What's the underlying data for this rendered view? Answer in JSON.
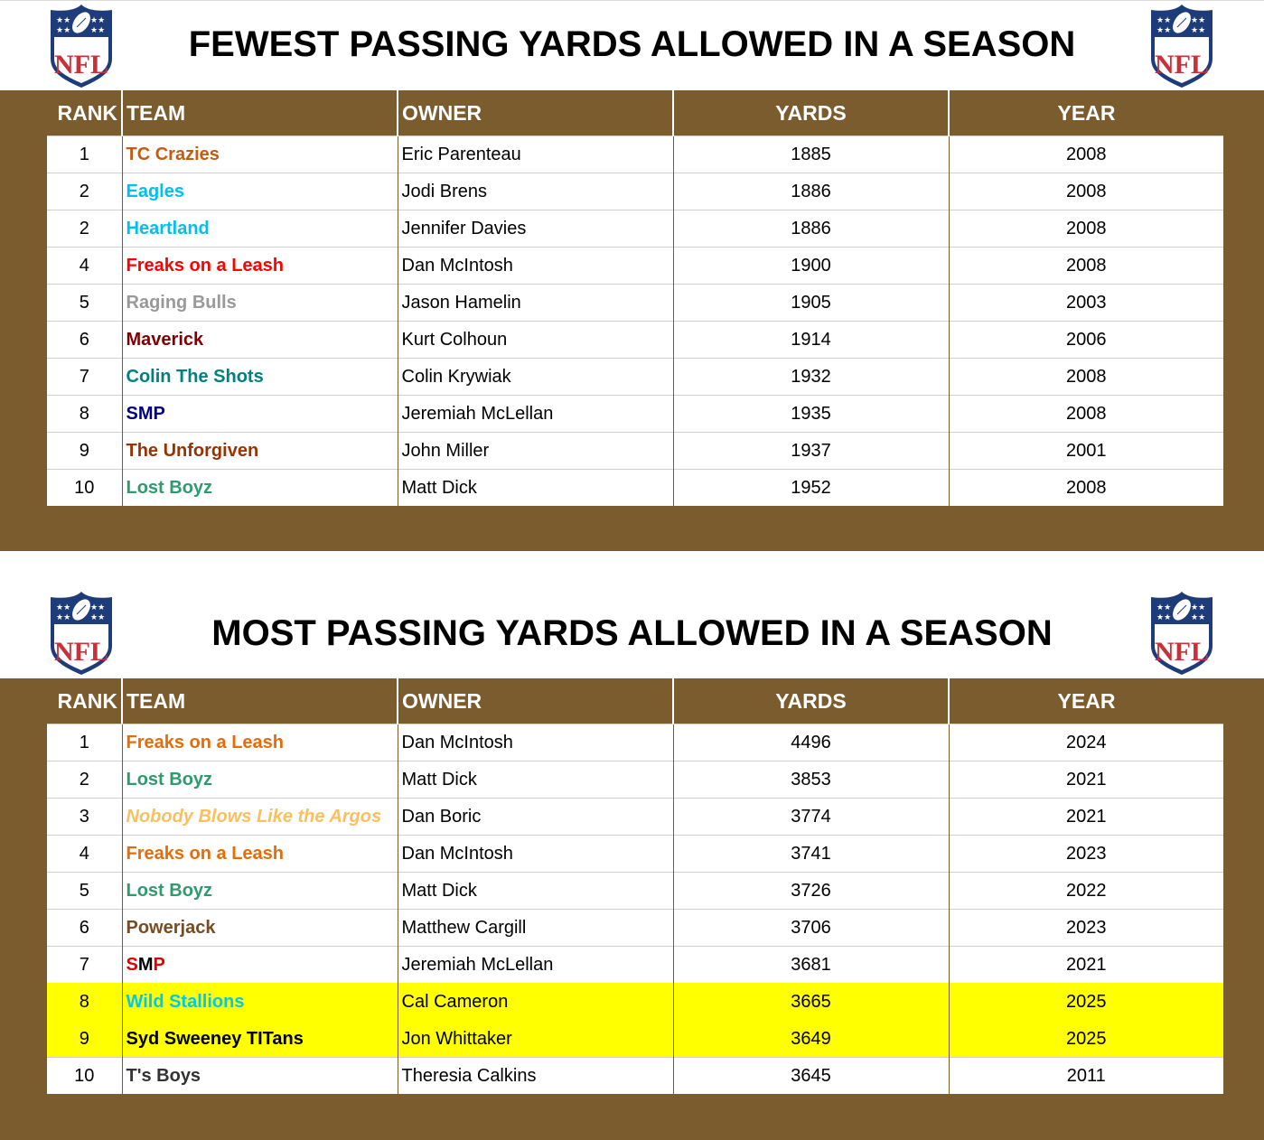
{
  "colors": {
    "band": "#7b5c2e",
    "highlight": "#ffff00"
  },
  "columns": [
    "RANK",
    "TEAM",
    "OWNER",
    "YARDS",
    "YEAR"
  ],
  "fewest": {
    "title": "FEWEST PASSING YARDS ALLOWED IN A SEASON",
    "logo": "nfl-shield-logo",
    "rows": [
      {
        "rank": "1",
        "team": "TC Crazies",
        "team_color": "#c55a11",
        "owner": "Eric Parenteau",
        "yards": "1885",
        "year": "2008"
      },
      {
        "rank": "2",
        "team": "Eagles",
        "team_color": "#00c0f0",
        "owner": "Jodi Brens",
        "yards": "1886",
        "year": "2008"
      },
      {
        "rank": "2",
        "team": "Heartland",
        "team_color": "#00c0f0",
        "owner": "Jennifer Davies",
        "yards": "1886",
        "year": "2008"
      },
      {
        "rank": "4",
        "team": "Freaks on a Leash",
        "team_color": "#ff0000",
        "owner": "Dan McIntosh",
        "yards": "1900",
        "year": "2008"
      },
      {
        "rank": "5",
        "team": "Raging Bulls",
        "team_color": "#999999",
        "owner": "Jason Hamelin",
        "yards": "1905",
        "year": "2003"
      },
      {
        "rank": "6",
        "team": "Maverick",
        "team_color": "#7f0000",
        "owner": "Kurt Colhoun",
        "yards": "1914",
        "year": "2006"
      },
      {
        "rank": "7",
        "team": "Colin The Shots",
        "team_color": "#008080",
        "owner": "Colin Krywiak",
        "yards": "1932",
        "year": "2008"
      },
      {
        "rank": "8",
        "team": "SMP",
        "team_color": "#000080",
        "owner": "Jeremiah McLellan",
        "yards": "1935",
        "year": "2008"
      },
      {
        "rank": "9",
        "team": "The Unforgiven",
        "team_color": "#993300",
        "owner": "John Miller",
        "yards": "1937",
        "year": "2001"
      },
      {
        "rank": "10",
        "team": "Lost Boyz",
        "team_color": "#2e9a6e",
        "owner": "Matt Dick",
        "yards": "1952",
        "year": "2008"
      }
    ]
  },
  "most": {
    "title": "MOST PASSING YARDS ALLOWED IN A SEASON",
    "logo": "nfl-shield-logo",
    "rows": [
      {
        "rank": "1",
        "team": "Freaks on a Leash",
        "team_color": "#e46c0a",
        "owner": "Dan McIntosh",
        "yards": "4496",
        "year": "2024"
      },
      {
        "rank": "2",
        "team": "Lost Boyz",
        "team_color": "#2e9a6e",
        "owner": "Matt Dick",
        "yards": "3853",
        "year": "2021"
      },
      {
        "rank": "3",
        "team": "Nobody Blows Like the Argos",
        "team_color": "#fac060",
        "italic": true,
        "owner": "Dan Boric",
        "yards": "3774",
        "year": "2021"
      },
      {
        "rank": "4",
        "team": "Freaks on a Leash",
        "team_color": "#e46c0a",
        "owner": "Dan McIntosh",
        "yards": "3741",
        "year": "2023"
      },
      {
        "rank": "5",
        "team": "Lost Boyz",
        "team_color": "#2e9a6e",
        "owner": "Matt Dick",
        "yards": "3726",
        "year": "2022"
      },
      {
        "rank": "6",
        "team": "Powerjack",
        "team_color": "#7b4a1e",
        "owner": "Matthew Cargill",
        "yards": "3706",
        "year": "2023"
      },
      {
        "rank": "7",
        "team": "SMP",
        "team_parts": [
          {
            "t": "S",
            "c": "#e00000"
          },
          {
            "t": "M",
            "c": "#000000"
          },
          {
            "t": "P",
            "c": "#e00000"
          }
        ],
        "owner": "Jeremiah McLellan",
        "yards": "3681",
        "year": "2021"
      },
      {
        "rank": "8",
        "team": "Wild Stallions",
        "team_color": "#00c8f0",
        "owner": "Cal Cameron",
        "yards": "3665",
        "year": "2025",
        "highlight": true
      },
      {
        "rank": "9",
        "team": "Syd Sweeney TITans",
        "team_color": "#000000",
        "owner": "Jon Whittaker",
        "yards": "3649",
        "year": "2025",
        "highlight": true
      },
      {
        "rank": "10",
        "team": "T's Boys",
        "team_color": "#333333",
        "owner": "Theresia Calkins",
        "yards": "3645",
        "year": "2011"
      }
    ]
  }
}
